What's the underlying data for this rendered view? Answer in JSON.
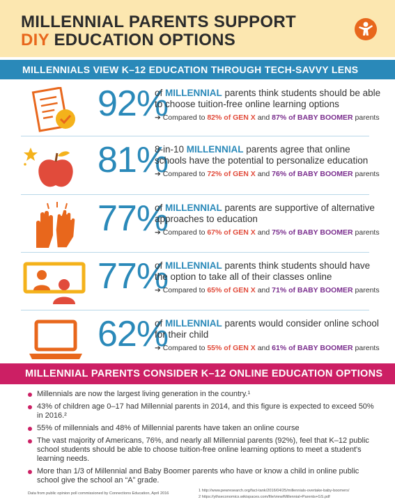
{
  "header": {
    "title_line1": "MILLENNIAL PARENTS SUPPORT",
    "title_accent": "DIY",
    "title_line2_rest": " EDUCATION OPTIONS",
    "logo_icon": "connections-education-logo-icon"
  },
  "section1": {
    "heading": "MILLENNIALS VIEW K–12 EDUCATION THROUGH TECH-SAVVY LENS"
  },
  "stats": [
    {
      "icon": "checklist-icon",
      "pct": "92%",
      "pre": "of ",
      "highlight": "MILLENNIAL",
      "post": " parents think students should be able to choose tuition-free online learning options",
      "cmp_pre": "➔ Compared to ",
      "gx_val": "82% of GEN X",
      "cmp_mid": " and ",
      "bb_val": "87% of BABY BOOMER",
      "cmp_post": " parents"
    },
    {
      "icon": "apple-icon",
      "pct": "81%",
      "pre": "8-in-10 ",
      "highlight": "MILLENNIAL",
      "post": " parents agree that online schools have the potential to personalize education",
      "cmp_pre": "➔ Compared to ",
      "gx_val": "72% of GEN X",
      "cmp_mid": " and ",
      "bb_val": "76% of BABY BOOMER",
      "cmp_post": " parents"
    },
    {
      "icon": "clapping-hands-icon",
      "pct": "77%",
      "pre": "of ",
      "highlight": "MILLENNIAL",
      "post": " parents are supportive of alternative approaches to education",
      "cmp_pre": "➔ Compared to ",
      "gx_val": "67% of GEN X",
      "cmp_mid": " and ",
      "bb_val": "75% of BABY BOOMER",
      "cmp_post": " parents"
    },
    {
      "icon": "video-class-icon",
      "pct": "77%",
      "pre": "of ",
      "highlight": "MILLENNIAL",
      "post": " parents think students should have the option to take all of their classes online",
      "cmp_pre": "➔ Compared to ",
      "gx_val": "65% of GEN X",
      "cmp_mid": " and ",
      "bb_val": "71% of BABY BOOMER",
      "cmp_post": " parents"
    },
    {
      "icon": "laptop-icon",
      "pct": "62%",
      "pre": "of ",
      "highlight": "MILLENNIAL",
      "post": " parents would consider online school for their child",
      "cmp_pre": "➔ Compared to ",
      "gx_val": "55% of GEN X",
      "cmp_mid": " and ",
      "bb_val": "61% of BABY BOOMER",
      "cmp_post": " parents"
    }
  ],
  "section2": {
    "heading": "MILLENNIAL PARENTS CONSIDER K–12 ONLINE EDUCATION OPTIONS",
    "bullets": [
      "Millennials are now the largest living generation in the country.¹",
      "43% of children age 0–17 had Millennial parents in 2014, and this figure is expected to exceed 50% in 2016.²",
      "55% of millennials and 48% of Millennial parents have taken an online course",
      "The vast majority of Americans, 76%, and nearly all Millennial parents (92%), feel that K–12 public school students should be able to choose tuition-free online learning options to meet a student's learning needs.",
      "More than 1/3 of Millennial and Baby Boomer parents who have or know a child in online public school give the school an “A” grade."
    ]
  },
  "footer": {
    "source": "Data from public opinion poll commissioned by Connections Education, April 2016",
    "ref1": "1  http://www.pewresearch.org/fact-tank/2016/04/25/millennials-overtake-baby-boomers/",
    "ref2": "2  https://ythseconomics.wikispaces.com/file/view/Millennial+Parents+GS.pdf"
  },
  "colors": {
    "blue": "#2a89b9",
    "orange": "#e8671c",
    "magenta": "#cc1f64",
    "red": "#e14b3b",
    "purple": "#7a2e8e",
    "cream": "#fce7b0"
  }
}
